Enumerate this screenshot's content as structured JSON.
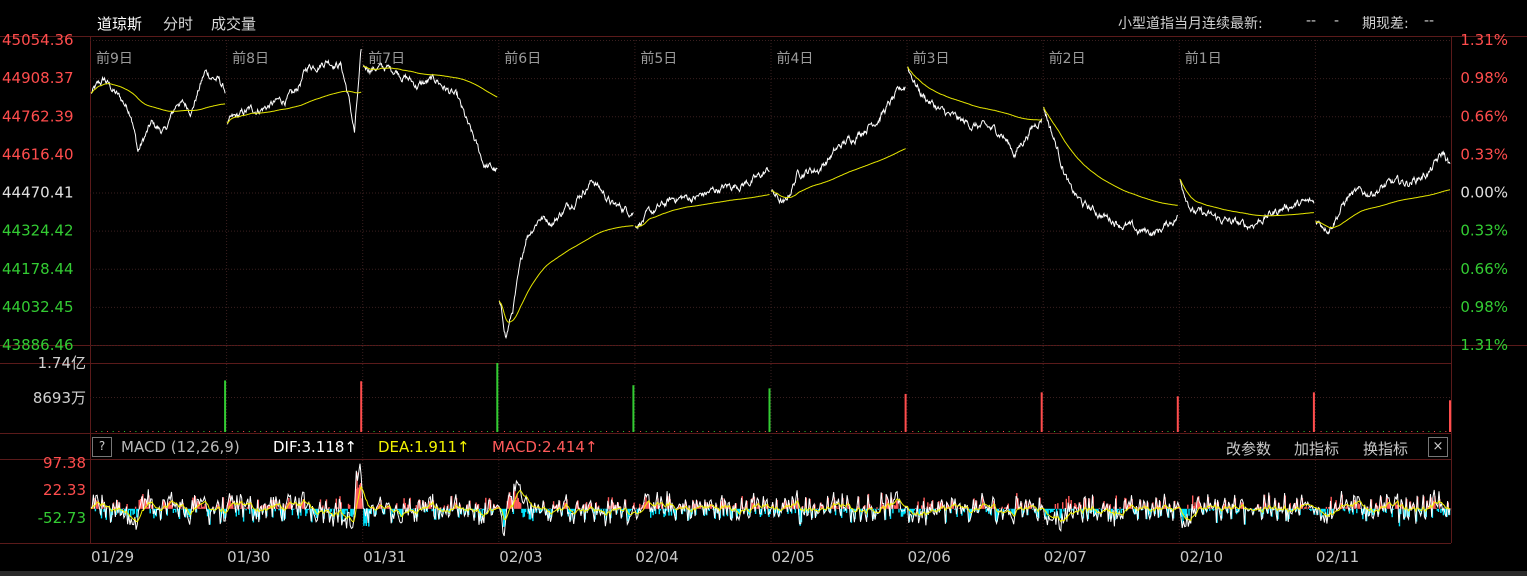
{
  "tabs": [
    {
      "label": "道琼斯"
    },
    {
      "label": "分时"
    },
    {
      "label": "成交量"
    }
  ],
  "header_info": {
    "mini_dow_label": "小型道指当月连续最新:",
    "mini_dow_value": "--",
    "mini_dow_value2": "-",
    "basis_label": "期现差:",
    "basis_value": "--"
  },
  "colors": {
    "up": "#ff4d4d",
    "down": "#33cc33",
    "neutral": "#e0e0e0",
    "price_line": "#ffffff",
    "avg_line": "#e6e600",
    "grid": "#3a1f1f",
    "dif": "#ffffff",
    "dea": "#f2f200",
    "macd_pos": "#ff5a5a",
    "macd_neg": "#00e5ff"
  },
  "chart_data": {
    "type": "line",
    "title": "",
    "y_left_ticks": [
      "45054.36",
      "44908.37",
      "44762.39",
      "44616.40",
      "44470.41",
      "44324.42",
      "44178.44",
      "44032.45",
      "43886.46"
    ],
    "y_right_ticks": [
      "1.31%",
      "0.98%",
      "0.66%",
      "0.33%",
      "0.00%",
      "0.33%",
      "0.66%",
      "0.98%",
      "1.31%"
    ],
    "ylim": [
      43886.46,
      45054.36
    ],
    "prev_close": 44470.41,
    "day_labels": [
      "前9日",
      "前8日",
      "前7日",
      "前6日",
      "前5日",
      "前4日",
      "前3日",
      "前2日",
      "前1日",
      ""
    ],
    "dates": [
      "01/29",
      "01/30",
      "01/31",
      "02/03",
      "02/04",
      "02/05",
      "02/06",
      "02/07",
      "02/10",
      "02/11"
    ],
    "price_knots": [
      [
        [
          0,
          44850
        ],
        [
          0.1,
          44900
        ],
        [
          0.2,
          44840
        ],
        [
          0.3,
          44780
        ],
        [
          0.35,
          44630
        ],
        [
          0.45,
          44730
        ],
        [
          0.55,
          44700
        ],
        [
          0.65,
          44820
        ],
        [
          0.75,
          44790
        ],
        [
          0.85,
          44930
        ],
        [
          0.95,
          44900
        ],
        [
          1.0,
          44860
        ]
      ],
      [
        [
          0,
          44730
        ],
        [
          0.15,
          44780
        ],
        [
          0.3,
          44800
        ],
        [
          0.5,
          44840
        ],
        [
          0.6,
          44950
        ],
        [
          0.75,
          44980
        ],
        [
          0.85,
          44960
        ],
        [
          0.9,
          44850
        ],
        [
          0.95,
          44700
        ],
        [
          1.0,
          45000
        ]
      ],
      [
        [
          0,
          44950
        ],
        [
          0.1,
          44950
        ],
        [
          0.25,
          44940
        ],
        [
          0.4,
          44880
        ],
        [
          0.55,
          44900
        ],
        [
          0.7,
          44830
        ],
        [
          0.8,
          44700
        ],
        [
          0.9,
          44580
        ],
        [
          1.0,
          44550
        ]
      ],
      [
        [
          0,
          44050
        ],
        [
          0.05,
          43920
        ],
        [
          0.1,
          44020
        ],
        [
          0.2,
          44300
        ],
        [
          0.3,
          44380
        ],
        [
          0.4,
          44360
        ],
        [
          0.55,
          44440
        ],
        [
          0.7,
          44520
        ],
        [
          0.85,
          44420
        ],
        [
          1.0,
          44400
        ]
      ],
      [
        [
          0,
          44350
        ],
        [
          0.15,
          44400
        ],
        [
          0.3,
          44450
        ],
        [
          0.45,
          44450
        ],
        [
          0.6,
          44480
        ],
        [
          0.75,
          44500
        ],
        [
          0.9,
          44520
        ],
        [
          1.0,
          44560
        ]
      ],
      [
        [
          0,
          44470
        ],
        [
          0.1,
          44420
        ],
        [
          0.2,
          44550
        ],
        [
          0.35,
          44560
        ],
        [
          0.5,
          44640
        ],
        [
          0.65,
          44700
        ],
        [
          0.8,
          44760
        ],
        [
          0.9,
          44820
        ],
        [
          1.0,
          44880
        ]
      ],
      [
        [
          0,
          44950
        ],
        [
          0.1,
          44850
        ],
        [
          0.25,
          44780
        ],
        [
          0.4,
          44740
        ],
        [
          0.55,
          44720
        ],
        [
          0.7,
          44700
        ],
        [
          0.8,
          44620
        ],
        [
          0.9,
          44700
        ],
        [
          1.0,
          44760
        ]
      ],
      [
        [
          0,
          44800
        ],
        [
          0.1,
          44640
        ],
        [
          0.2,
          44480
        ],
        [
          0.3,
          44420
        ],
        [
          0.45,
          44380
        ],
        [
          0.55,
          44360
        ],
        [
          0.7,
          44320
        ],
        [
          0.85,
          44320
        ],
        [
          1.0,
          44380
        ]
      ],
      [
        [
          0,
          44520
        ],
        [
          0.1,
          44400
        ],
        [
          0.2,
          44380
        ],
        [
          0.35,
          44360
        ],
        [
          0.5,
          44340
        ],
        [
          0.65,
          44380
        ],
        [
          0.8,
          44420
        ],
        [
          1.0,
          44430
        ]
      ],
      [
        [
          0,
          44360
        ],
        [
          0.1,
          44340
        ],
        [
          0.25,
          44460
        ],
        [
          0.4,
          44470
        ],
        [
          0.55,
          44500
        ],
        [
          0.7,
          44510
        ],
        [
          0.85,
          44550
        ],
        [
          0.95,
          44620
        ],
        [
          1.0,
          44570
        ]
      ]
    ],
    "volume": {
      "ticks": [
        "1.74亿",
        "8693万"
      ],
      "ylim": [
        0,
        174000000
      ],
      "bars": [
        {
          "day": 1,
          "value": 130000000,
          "dir": "down"
        },
        {
          "day": 2,
          "value": 128000000,
          "dir": "up"
        },
        {
          "day": 3,
          "value": 174000000,
          "dir": "down"
        },
        {
          "day": 4,
          "value": 118000000,
          "dir": "down"
        },
        {
          "day": 5,
          "value": 110000000,
          "dir": "down"
        },
        {
          "day": 6,
          "value": 96000000,
          "dir": "up"
        },
        {
          "day": 7,
          "value": 100000000,
          "dir": "up"
        },
        {
          "day": 8,
          "value": 90000000,
          "dir": "up"
        },
        {
          "day": 9,
          "value": 100000000,
          "dir": "up"
        },
        {
          "day": 10,
          "value": 80000000,
          "dir": "up"
        }
      ]
    },
    "macd": {
      "title": "MACD (12,26,9)",
      "dif_label": "DIF:3.118↑",
      "dea_label": "DEA:1.911↑",
      "macd_label": "MACD:2.414↑",
      "ticks": [
        "97.38",
        "22.33",
        "-52.73"
      ],
      "ylim": [
        -90,
        135
      ]
    }
  },
  "buttons": {
    "help": "?",
    "modify_params": "改参数",
    "add_indicator": "加指标",
    "switch_indicator": "换指标",
    "close": "×"
  }
}
